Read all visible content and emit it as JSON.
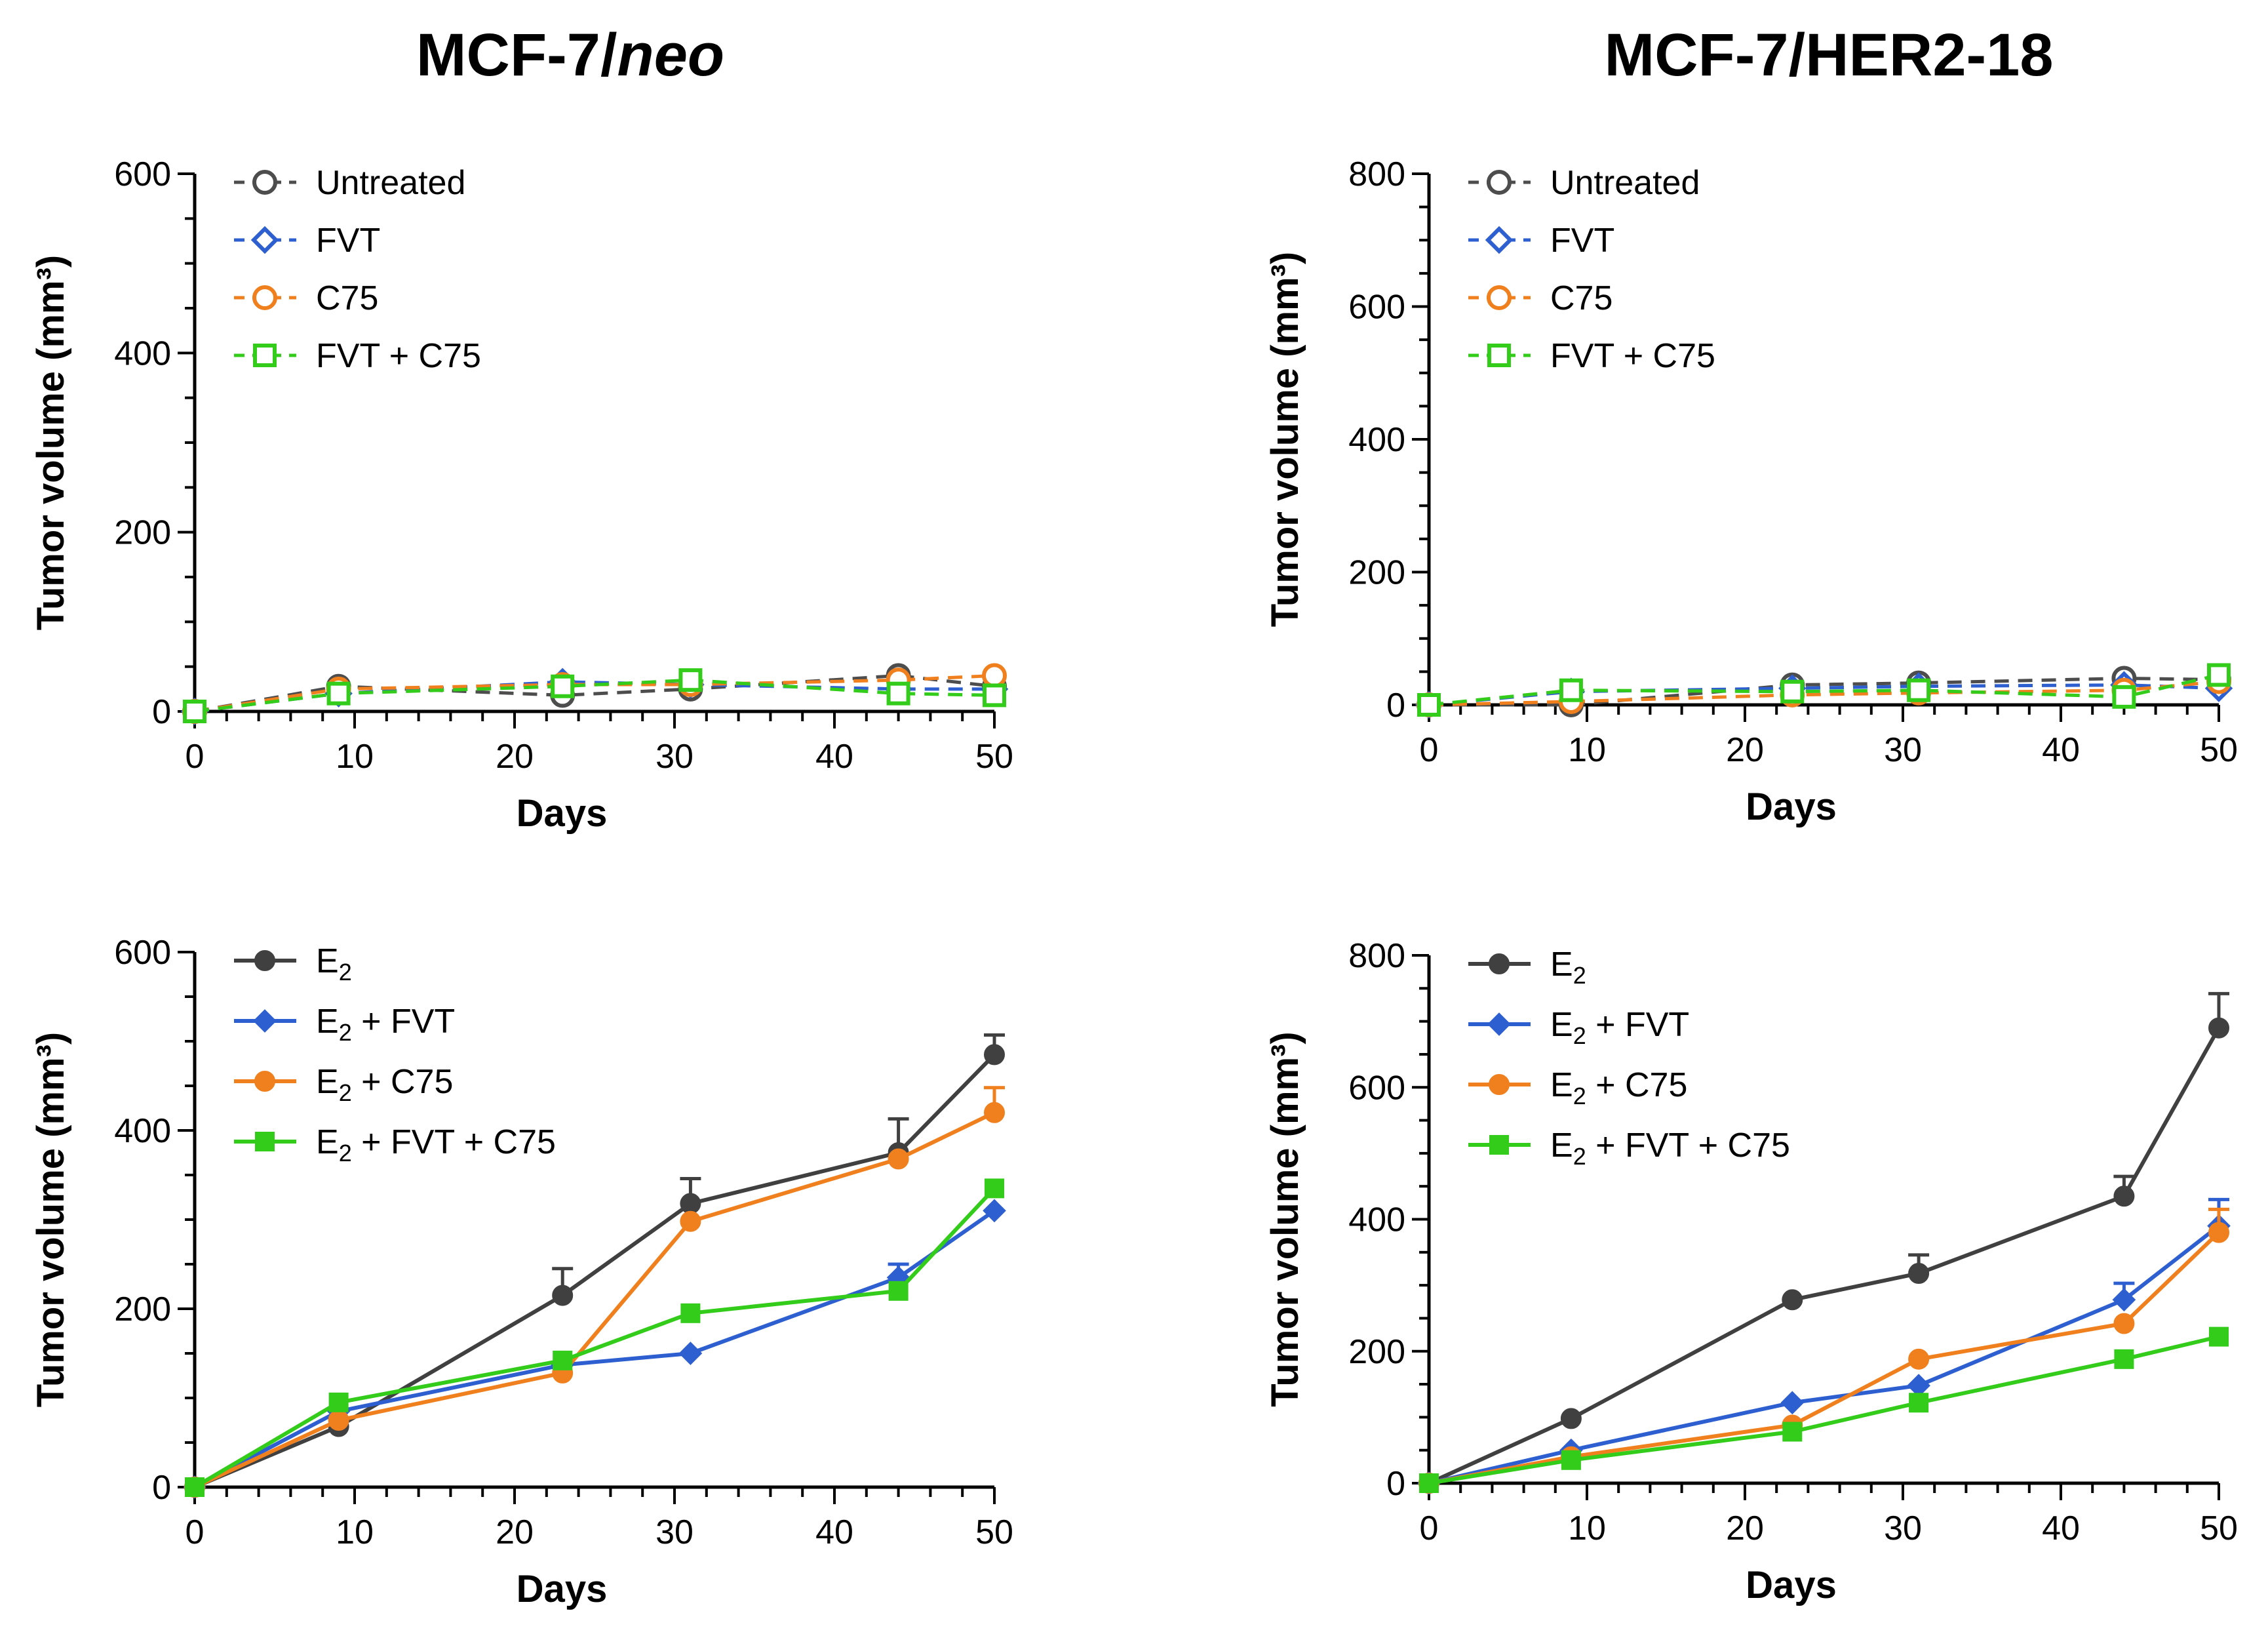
{
  "columns": [
    {
      "title_main": "MCF-7/",
      "title_italic": "neo"
    },
    {
      "title_main": "MCF-7/HER2-18",
      "title_italic": ""
    }
  ],
  "chart_data": [
    {
      "type": "line",
      "id": "neo-top",
      "xlabel": "Days",
      "ylabel": "Tumor volume (mm³)",
      "xlim": [
        0,
        50
      ],
      "ylim": [
        0,
        600
      ],
      "xticks": [
        0,
        10,
        20,
        30,
        40,
        50
      ],
      "yticks": [
        0,
        200,
        400,
        600
      ],
      "legend": "top-left",
      "x": [
        0,
        9,
        23,
        31,
        44,
        50
      ],
      "series": [
        {
          "name": "Untreated",
          "name_sub": "",
          "name_rest": "",
          "color": "#4d4d4d",
          "marker": "circle",
          "filled": false,
          "dashed": true,
          "values": [
            0,
            28,
            18,
            25,
            40,
            28
          ],
          "err": [
            0,
            0,
            0,
            0,
            0,
            0
          ]
        },
        {
          "name": "FVT",
          "name_sub": "",
          "name_rest": "",
          "color": "#2d5fd0",
          "marker": "diamond",
          "filled": false,
          "dashed": true,
          "values": [
            0,
            20,
            33,
            30,
            25,
            25
          ],
          "err": [
            0,
            0,
            0,
            0,
            0,
            0
          ]
        },
        {
          "name": "C75",
          "name_sub": "",
          "name_rest": "",
          "color": "#f07f1e",
          "marker": "circle",
          "filled": false,
          "dashed": true,
          "values": [
            0,
            25,
            30,
            30,
            35,
            40
          ],
          "err": [
            0,
            0,
            0,
            0,
            0,
            0
          ]
        },
        {
          "name": "FVT + C75",
          "name_sub": "",
          "name_rest": "",
          "color": "#33cc1a",
          "marker": "square",
          "filled": false,
          "dashed": true,
          "values": [
            0,
            20,
            28,
            35,
            20,
            18
          ],
          "err": [
            0,
            0,
            0,
            0,
            0,
            0
          ]
        }
      ]
    },
    {
      "type": "line",
      "id": "her2-top",
      "xlabel": "Days",
      "ylabel": "Tumor volume (mm³)",
      "xlim": [
        0,
        50
      ],
      "ylim": [
        0,
        800
      ],
      "xticks": [
        0,
        10,
        20,
        30,
        40,
        50
      ],
      "yticks": [
        0,
        200,
        400,
        600,
        800
      ],
      "legend": "top-left",
      "x": [
        0,
        9,
        23,
        31,
        44,
        50
      ],
      "series": [
        {
          "name": "Untreated",
          "name_sub": "",
          "name_rest": "",
          "color": "#4d4d4d",
          "marker": "circle",
          "filled": false,
          "dashed": true,
          "values": [
            0,
            0,
            30,
            33,
            40,
            38
          ],
          "err": [
            0,
            0,
            0,
            0,
            0,
            0
          ]
        },
        {
          "name": "FVT",
          "name_sub": "",
          "name_rest": "",
          "color": "#2d5fd0",
          "marker": "diamond",
          "filled": false,
          "dashed": true,
          "values": [
            0,
            20,
            25,
            28,
            30,
            25
          ],
          "err": [
            0,
            0,
            0,
            0,
            0,
            0
          ]
        },
        {
          "name": "C75",
          "name_sub": "",
          "name_rest": "",
          "color": "#f07f1e",
          "marker": "circle",
          "filled": false,
          "dashed": true,
          "values": [
            0,
            5,
            15,
            18,
            22,
            35
          ],
          "err": [
            0,
            0,
            0,
            0,
            0,
            0
          ]
        },
        {
          "name": "FVT + C75",
          "name_sub": "",
          "name_rest": "",
          "color": "#33cc1a",
          "marker": "square",
          "filled": false,
          "dashed": true,
          "values": [
            0,
            22,
            20,
            22,
            12,
            45
          ],
          "err": [
            0,
            0,
            0,
            0,
            0,
            0
          ]
        }
      ]
    },
    {
      "type": "line",
      "id": "neo-bottom",
      "xlabel": "Days",
      "ylabel": "Tumor volume (mm³)",
      "xlim": [
        0,
        50
      ],
      "ylim": [
        0,
        600
      ],
      "xticks": [
        0,
        10,
        20,
        30,
        40,
        50
      ],
      "yticks": [
        0,
        200,
        400,
        600
      ],
      "legend": "top-left",
      "x": [
        0,
        9,
        23,
        31,
        44,
        50
      ],
      "series": [
        {
          "name": "E",
          "name_sub": "2",
          "name_rest": "",
          "color": "#404040",
          "marker": "circle",
          "filled": true,
          "dashed": false,
          "values": [
            0,
            68,
            215,
            318,
            375,
            485
          ],
          "err": [
            0,
            0,
            30,
            28,
            38,
            22
          ]
        },
        {
          "name": "E",
          "name_sub": "2",
          "name_rest": " + FVT",
          "color": "#2d5fd0",
          "marker": "diamond",
          "filled": true,
          "dashed": false,
          "values": [
            0,
            85,
            137,
            150,
            235,
            310
          ],
          "err": [
            0,
            0,
            0,
            0,
            15,
            0
          ]
        },
        {
          "name": "E",
          "name_sub": "2",
          "name_rest": " + C75",
          "color": "#f07f1e",
          "marker": "circle",
          "filled": true,
          "dashed": false,
          "values": [
            0,
            75,
            128,
            298,
            368,
            420
          ],
          "err": [
            0,
            0,
            0,
            0,
            0,
            28
          ]
        },
        {
          "name": "E",
          "name_sub": "2",
          "name_rest": " + FVT + C75",
          "color": "#33cc1a",
          "marker": "square",
          "filled": true,
          "dashed": false,
          "values": [
            0,
            95,
            142,
            195,
            220,
            335
          ],
          "err": [
            0,
            0,
            0,
            0,
            0,
            0
          ]
        }
      ]
    },
    {
      "type": "line",
      "id": "her2-bottom",
      "xlabel": "Days",
      "ylabel": "Tumor volume (mm³)",
      "xlim": [
        0,
        50
      ],
      "ylim": [
        0,
        800
      ],
      "xticks": [
        0,
        10,
        20,
        30,
        40,
        50
      ],
      "yticks": [
        0,
        200,
        400,
        600,
        800
      ],
      "legend": "top-left",
      "x": [
        0,
        9,
        23,
        31,
        44,
        50
      ],
      "series": [
        {
          "name": "E",
          "name_sub": "2",
          "name_rest": "",
          "color": "#404040",
          "marker": "circle",
          "filled": true,
          "dashed": false,
          "values": [
            0,
            98,
            278,
            318,
            435,
            690
          ],
          "err": [
            0,
            0,
            0,
            28,
            30,
            52
          ]
        },
        {
          "name": "E",
          "name_sub": "2",
          "name_rest": " + FVT",
          "color": "#2d5fd0",
          "marker": "diamond",
          "filled": true,
          "dashed": false,
          "values": [
            0,
            50,
            122,
            148,
            278,
            390
          ],
          "err": [
            0,
            0,
            0,
            0,
            25,
            40
          ]
        },
        {
          "name": "E",
          "name_sub": "2",
          "name_rest": " + C75",
          "color": "#f07f1e",
          "marker": "circle",
          "filled": true,
          "dashed": false,
          "values": [
            0,
            40,
            88,
            188,
            242,
            380
          ],
          "err": [
            0,
            0,
            0,
            0,
            0,
            35
          ]
        },
        {
          "name": "E",
          "name_sub": "2",
          "name_rest": " + FVT + C75",
          "color": "#33cc1a",
          "marker": "square",
          "filled": true,
          "dashed": false,
          "values": [
            0,
            35,
            78,
            122,
            188,
            222
          ],
          "err": [
            0,
            0,
            0,
            0,
            0,
            0
          ]
        }
      ]
    }
  ]
}
